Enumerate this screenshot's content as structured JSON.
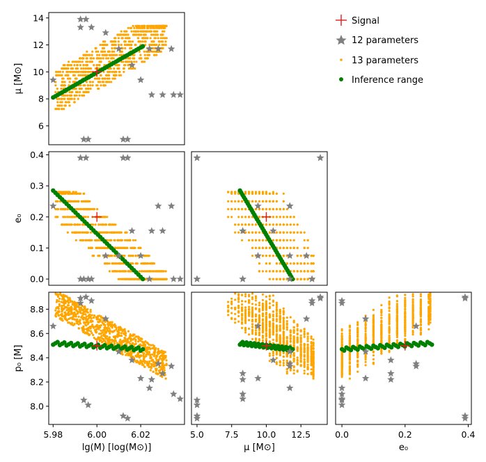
{
  "chart_data": {
    "type": "scatter",
    "figure": "corner plot",
    "legend": {
      "placement": "top-right",
      "entries": [
        {
          "label": "Signal",
          "marker": "plus",
          "color": "#e41a1c"
        },
        {
          "label": "12 parameters",
          "marker": "star",
          "color": "#808080"
        },
        {
          "label": "13 parameters",
          "marker": "dot-small",
          "color": "#ffa500"
        },
        {
          "label": "Inference range",
          "marker": "dot",
          "color": "#008000"
        }
      ]
    },
    "signal": {
      "lgM": 6.0,
      "mu": 10.0,
      "e0": 0.2,
      "p0": 8.5
    },
    "ranges": {
      "lgM": [
        5.978,
        6.04
      ],
      "mu": [
        4.6,
        14.4
      ],
      "e0": [
        -0.02,
        0.41
      ],
      "p0": [
        7.85,
        8.94
      ]
    },
    "ticks": {
      "lgM": [
        "5.98",
        "6.00",
        "6.02"
      ],
      "mu_x": [
        "5.0",
        "7.5",
        "10.0",
        "12.5"
      ],
      "mu_y": [
        "6",
        "8",
        "10",
        "12",
        "14"
      ],
      "e0_x": [
        "0.0",
        "0.2",
        "0.4"
      ],
      "e0_y": [
        "0.0",
        "0.1",
        "0.2",
        "0.3",
        "0.4"
      ],
      "p0_y": [
        "8.0",
        "8.2",
        "8.4",
        "8.6",
        "8.8"
      ]
    },
    "labels": {
      "lgM": "lg(M) [log(M⊙)]",
      "mu": "μ [M⊙]",
      "e0": "e₀",
      "p0": "p₀ [M]"
    },
    "inference_range": {
      "lgM": [
        5.98,
        6.021
      ],
      "mu": [
        8.1,
        11.9
      ],
      "e0": [
        0.0,
        0.285
      ],
      "p0": [
        8.46,
        8.54
      ]
    },
    "twelve_parameter_samples": [
      {
        "lgM": 5.9925,
        "mu": 13.9,
        "e0": 0.39,
        "p0": 8.89
      },
      {
        "lgM": 5.995,
        "mu": 13.9,
        "e0": 0.39,
        "p0": 8.9
      },
      {
        "lgM": 5.9925,
        "mu": 13.3,
        "e0": 0.0,
        "p0": 8.85
      },
      {
        "lgM": 5.9975,
        "mu": 13.3,
        "e0": 0.0,
        "p0": 8.87
      },
      {
        "lgM": 5.98,
        "mu": 9.4,
        "e0": 0.235,
        "p0": 8.66
      },
      {
        "lgM": 6.004,
        "mu": 12.9,
        "e0": 0.075,
        "p0": 8.72
      },
      {
        "lgM": 6.012,
        "mu": 5.0,
        "e0": 0.39,
        "p0": 7.92
      },
      {
        "lgM": 6.014,
        "mu": 5.0,
        "e0": 0.39,
        "p0": 7.9
      },
      {
        "lgM": 5.994,
        "mu": 5.0,
        "e0": 0.0,
        "p0": 8.05
      },
      {
        "lgM": 5.996,
        "mu": 5.0,
        "e0": 0.0,
        "p0": 8.01
      },
      {
        "lgM": 6.028,
        "mu": 11.7,
        "e0": 0.235,
        "p0": 8.35
      },
      {
        "lgM": 6.034,
        "mu": 11.7,
        "e0": 0.235,
        "p0": 8.33
      },
      {
        "lgM": 6.03,
        "mu": 8.3,
        "e0": 0.155,
        "p0": 8.27
      },
      {
        "lgM": 6.025,
        "mu": 8.3,
        "e0": 0.155,
        "p0": 8.22
      },
      {
        "lgM": 6.02,
        "mu": 9.4,
        "e0": 0.075,
        "p0": 8.23
      },
      {
        "lgM": 6.035,
        "mu": 8.3,
        "e0": 0.0,
        "p0": 8.1
      },
      {
        "lgM": 6.038,
        "mu": 8.3,
        "e0": 0.0,
        "p0": 8.06
      },
      {
        "lgM": 6.01,
        "mu": 11.7,
        "e0": 0.075,
        "p0": 8.45
      },
      {
        "lgM": 6.016,
        "mu": 10.5,
        "e0": 0.155,
        "p0": 8.38
      },
      {
        "lgM": 6.024,
        "mu": 11.7,
        "e0": 0.0,
        "p0": 8.15
      }
    ]
  }
}
